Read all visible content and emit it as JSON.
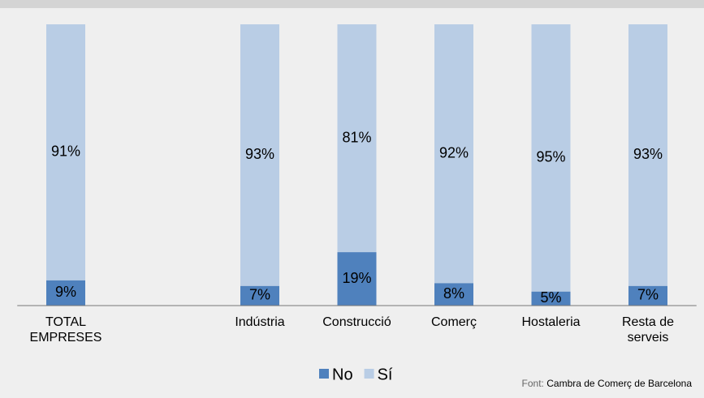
{
  "chart_data": {
    "type": "stacked_bar",
    "categories": [
      "TOTAL EMPRESES",
      null,
      "Indústria",
      "Construcció",
      "Comerç",
      "Hostaleria",
      "Resta de serveis"
    ],
    "series": [
      {
        "name": "No",
        "color": "#4f81bd",
        "values": [
          9,
          null,
          7,
          19,
          8,
          5,
          7
        ],
        "value_labels": [
          "9%",
          null,
          "7%",
          "19%",
          "8%",
          "5%",
          "7%"
        ]
      },
      {
        "name": "Sí",
        "color": "#b9cde5",
        "values": [
          91,
          null,
          93,
          81,
          92,
          95,
          93
        ],
        "value_labels": [
          "91%",
          null,
          "93%",
          "81%",
          "92%",
          "95%",
          "93%"
        ]
      }
    ],
    "ylim": [
      0,
      100
    ],
    "legend": "bottom",
    "source_label": "Font:",
    "source": "Cambra de Comerç de Barcelona"
  }
}
